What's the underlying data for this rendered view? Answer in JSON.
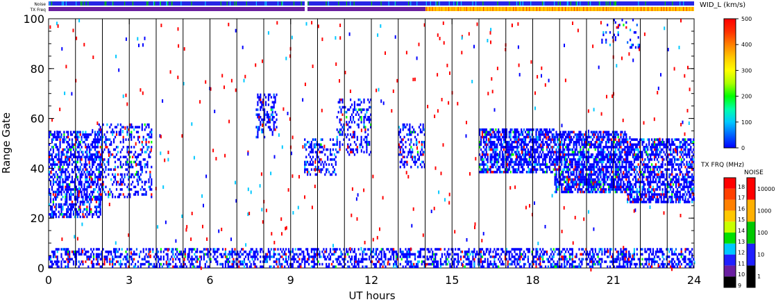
{
  "chart_data": {
    "type": "heatmap",
    "xlabel": "UT hours",
    "ylabel": "Range Gate",
    "xlim": [
      0,
      24
    ],
    "ylim": [
      0,
      100
    ],
    "x_ticks": [
      "0",
      "3",
      "6",
      "9",
      "12",
      "15",
      "18",
      "21",
      "24"
    ],
    "y_ticks": [
      "0",
      "20",
      "40",
      "60",
      "80",
      "100"
    ],
    "top_bars": {
      "noise_label": "Noise",
      "freq_label": "TX Freq",
      "freq_change_hour": 14
    },
    "colorbars": {
      "width": {
        "title": "WID_L (km/s)",
        "range": [
          0,
          500
        ],
        "ticks": [
          "0",
          "100",
          "200",
          "300",
          "400",
          "500"
        ],
        "colors": [
          "#0000ff",
          "#0064ff",
          "#00c8ff",
          "#00ffaa",
          "#00ff00",
          "#aaff00",
          "#ffff00",
          "#ffc800",
          "#ff8000",
          "#ff3000",
          "#ff0000"
        ]
      },
      "freq": {
        "title": "TX FRQ (MHz)",
        "ticks": [
          "9",
          "10",
          "11",
          "12",
          "13",
          "14",
          "15",
          "16",
          "17",
          "18"
        ],
        "colors": [
          "#000000",
          "#6a1fa0",
          "#2020ff",
          "#00c8ff",
          "#00e000",
          "#c8ff00",
          "#ffc800",
          "#ff8000",
          "#ff4000",
          "#ff0000"
        ]
      },
      "noise": {
        "title": "NOISE",
        "ticks": [
          "1",
          "10",
          "100",
          "1000",
          "10000"
        ],
        "colors": [
          "#000000",
          "#2020ff",
          "#00c800",
          "#ffb000",
          "#ff0000"
        ]
      }
    },
    "echo_regions": [
      {
        "t0": 0.0,
        "t1": 2.0,
        "g0": 20,
        "g1": 55,
        "density": 0.55
      },
      {
        "t0": 1.8,
        "t1": 3.8,
        "g0": 28,
        "g1": 58,
        "density": 0.3
      },
      {
        "t0": 7.7,
        "t1": 8.5,
        "g0": 52,
        "g1": 70,
        "density": 0.35
      },
      {
        "t0": 9.5,
        "t1": 10.7,
        "g0": 37,
        "g1": 52,
        "density": 0.35
      },
      {
        "t0": 10.7,
        "t1": 12.0,
        "g0": 45,
        "g1": 68,
        "density": 0.3
      },
      {
        "t0": 13.0,
        "t1": 14.0,
        "g0": 40,
        "g1": 58,
        "density": 0.35
      },
      {
        "t0": 16.0,
        "t1": 18.8,
        "g0": 38,
        "g1": 56,
        "density": 0.65
      },
      {
        "t0": 18.8,
        "t1": 21.5,
        "g0": 30,
        "g1": 55,
        "density": 0.7
      },
      {
        "t0": 21.5,
        "t1": 24.0,
        "g0": 26,
        "g1": 52,
        "density": 0.6
      },
      {
        "t0": 0.0,
        "t1": 24.0,
        "g0": 0,
        "g1": 8,
        "density": 0.45
      },
      {
        "t0": 20.5,
        "t1": 22.0,
        "g0": 88,
        "g1": 100,
        "density": 0.15
      }
    ]
  }
}
